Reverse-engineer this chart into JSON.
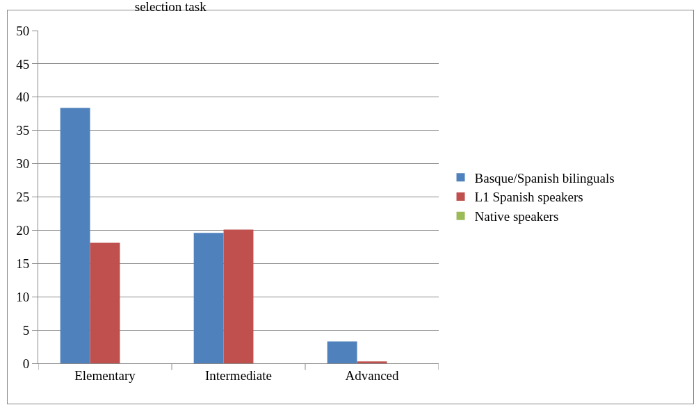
{
  "chart_data": {
    "type": "bar",
    "title": "selection task",
    "categories": [
      "Elementary",
      "Intermediate",
      "Advanced"
    ],
    "series": [
      {
        "name": "Basque/Spanish bilinguals",
        "color": "#4f81bd",
        "values": [
          38.4,
          19.6,
          3.3
        ]
      },
      {
        "name": "L1 Spanish speakers",
        "color": "#c0504d",
        "values": [
          18.1,
          20.1,
          0.3
        ]
      },
      {
        "name": "Native speakers",
        "color": "#9bbb59",
        "values": [
          0,
          0,
          0
        ]
      }
    ],
    "ylim": [
      0,
      50
    ],
    "yticks": [
      0,
      5,
      10,
      15,
      20,
      25,
      30,
      35,
      40,
      45,
      50
    ],
    "grid": "y",
    "legend": "right"
  }
}
